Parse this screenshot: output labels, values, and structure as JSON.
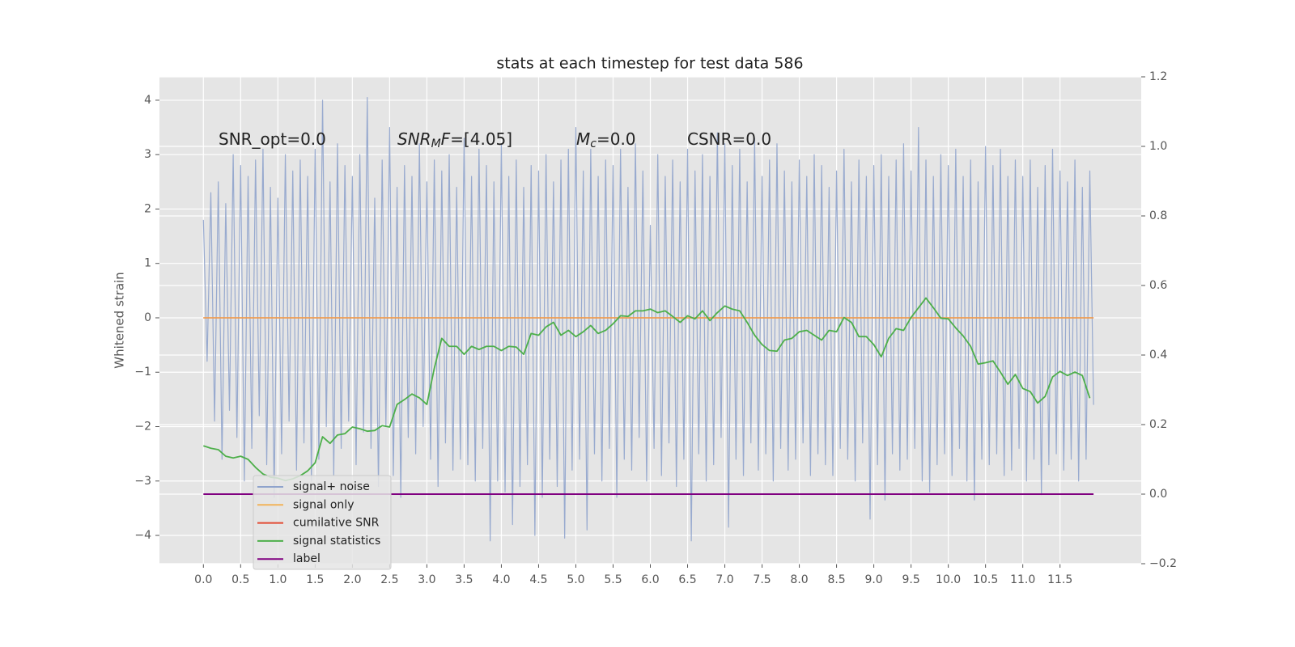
{
  "chart_data": {
    "type": "line",
    "title": "stats at each timestep for test data 586",
    "ylabel": "Whitened strain",
    "grid": true,
    "background": "#e5e5e5",
    "xlim": [
      -0.59,
      12.59
    ],
    "ylim": [
      -4.52,
      4.43
    ],
    "y2lim": [
      -0.2,
      1.2
    ],
    "xticks": [
      {
        "value": 0,
        "label": "0.0"
      },
      0.5,
      {
        "value": 1,
        "label": "1.0"
      },
      1.5,
      {
        "value": 2,
        "label": "2.0"
      },
      2.5,
      {
        "value": 3,
        "label": "3.0"
      },
      3.5,
      {
        "value": 4,
        "label": "4.0"
      },
      4.5,
      {
        "value": 5,
        "label": "5.0"
      },
      5.5,
      {
        "value": 6,
        "label": "6.0"
      },
      6.5,
      {
        "value": 7,
        "label": "7.0"
      },
      7.5,
      {
        "value": 8,
        "label": "8.0"
      },
      8.5,
      {
        "value": 9,
        "label": "9.0"
      },
      9.5,
      {
        "value": 10,
        "label": "10.0"
      },
      10.5,
      {
        "value": 11,
        "label": "11.0"
      },
      11.5
    ],
    "yticks": [
      {
        "value": -4,
        "label": "−4"
      },
      {
        "value": -3,
        "label": "−3"
      },
      {
        "value": -2,
        "label": "−2"
      },
      {
        "value": -1,
        "label": "−1"
      },
      0,
      1,
      2,
      3,
      4
    ],
    "y2ticks": [
      {
        "value": -0.2,
        "label": "−0.2"
      },
      {
        "value": 0,
        "label": "0.0"
      },
      0.2,
      0.4,
      0.6,
      0.8,
      {
        "value": 1,
        "label": "1.0"
      },
      1.2
    ],
    "annotations": [
      {
        "parts": [
          {
            "text": "SNR_opt=0.0"
          }
        ]
      },
      {
        "parts": [
          {
            "text": "SNR",
            "style": "italic"
          },
          {
            "text": "M",
            "style": "italic-sub"
          },
          {
            "text": "F",
            "style": "italic"
          },
          {
            "text": "=[4.05]"
          }
        ]
      },
      {
        "parts": [
          {
            "text": "M",
            "style": "italic"
          },
          {
            "text": "c",
            "style": "italic-sub"
          },
          {
            "text": "=0.0"
          }
        ]
      },
      {
        "parts": [
          {
            "text": "CSNR=0.0"
          }
        ]
      }
    ],
    "x": [
      0,
      0.05,
      0.1,
      0.15,
      0.2,
      0.25,
      0.3,
      0.35,
      0.4,
      0.45,
      0.5,
      0.55,
      0.6,
      0.65,
      0.7,
      0.75,
      0.8,
      0.85,
      0.9,
      0.95,
      1,
      1.05,
      1.1,
      1.15,
      1.2,
      1.25,
      1.3,
      1.35,
      1.4,
      1.45,
      1.5,
      1.55,
      1.6,
      1.65,
      1.7,
      1.75,
      1.8,
      1.85,
      1.9,
      1.95,
      2,
      2.05,
      2.1,
      2.15,
      2.2,
      2.25,
      2.3,
      2.35,
      2.4,
      2.45,
      2.5,
      2.55,
      2.6,
      2.65,
      2.7,
      2.75,
      2.8,
      2.85,
      2.9,
      2.95,
      3,
      3.05,
      3.1,
      3.15,
      3.2,
      3.25,
      3.3,
      3.35,
      3.4,
      3.45,
      3.5,
      3.55,
      3.6,
      3.65,
      3.7,
      3.75,
      3.8,
      3.85,
      3.9,
      3.95,
      4,
      4.05,
      4.1,
      4.15,
      4.2,
      4.25,
      4.3,
      4.35,
      4.4,
      4.45,
      4.5,
      4.55,
      4.6,
      4.65,
      4.7,
      4.75,
      4.8,
      4.85,
      4.9,
      4.95,
      5,
      5.05,
      5.1,
      5.15,
      5.2,
      5.25,
      5.3,
      5.35,
      5.4,
      5.45,
      5.5,
      5.55,
      5.6,
      5.65,
      5.7,
      5.75,
      5.8,
      5.85,
      5.9,
      5.95,
      6,
      6.05,
      6.1,
      6.15,
      6.2,
      6.25,
      6.3,
      6.35,
      6.4,
      6.45,
      6.5,
      6.55,
      6.6,
      6.65,
      6.7,
      6.75,
      6.8,
      6.85,
      6.9,
      6.95,
      7,
      7.05,
      7.1,
      7.15,
      7.2,
      7.25,
      7.3,
      7.35,
      7.4,
      7.45,
      7.5,
      7.55,
      7.6,
      7.65,
      7.7,
      7.75,
      7.8,
      7.85,
      7.9,
      7.95,
      8,
      8.05,
      8.1,
      8.15,
      8.2,
      8.25,
      8.3,
      8.35,
      8.4,
      8.45,
      8.5,
      8.55,
      8.6,
      8.65,
      8.7,
      8.75,
      8.8,
      8.85,
      8.9,
      8.95,
      9,
      9.05,
      9.1,
      9.15,
      9.2,
      9.25,
      9.3,
      9.35,
      9.4,
      9.45,
      9.5,
      9.55,
      9.6,
      9.65,
      9.7,
      9.75,
      9.8,
      9.85,
      9.9,
      9.95,
      10,
      10.05,
      10.1,
      10.15,
      10.2,
      10.25,
      10.3,
      10.35,
      10.4,
      10.45,
      10.5,
      10.55,
      10.6,
      10.65,
      10.7,
      10.75,
      10.8,
      10.85,
      10.9,
      10.95,
      11,
      11.05,
      11.1,
      11.15,
      11.2,
      11.25,
      11.3,
      11.35,
      11.4,
      11.45,
      11.5,
      11.55,
      11.6,
      11.65,
      11.7,
      11.75,
      11.8,
      11.85,
      11.9,
      11.95
    ],
    "series": [
      {
        "name": "signal+ noise",
        "color": "#8fa3cc",
        "values": [
          1.8,
          -0.8,
          2.3,
          -1.9,
          2.5,
          -2.6,
          2.1,
          -1.7,
          3.0,
          -2.2,
          2.8,
          -3.0,
          2.6,
          -2.4,
          2.9,
          -1.8,
          3.1,
          -2.7,
          2.4,
          -3.3,
          2.2,
          -2.5,
          3.0,
          -1.9,
          2.7,
          -2.8,
          2.9,
          -2.3,
          2.6,
          -3.0,
          3.1,
          -2.6,
          4.0,
          -2.0,
          2.5,
          -2.9,
          3.2,
          -2.4,
          2.8,
          -1.9,
          2.6,
          -2.7,
          3.0,
          -2.1,
          4.05,
          -2.4,
          2.2,
          -3.1,
          2.9,
          -2.0,
          3.5,
          -2.9,
          2.4,
          -3.3,
          2.8,
          -2.2,
          2.6,
          -2.5,
          3.2,
          -2.0,
          2.5,
          -2.6,
          2.9,
          -3.1,
          2.7,
          -2.3,
          3.0,
          -2.8,
          2.4,
          -2.6,
          3.3,
          -2.7,
          2.6,
          -3.0,
          3.1,
          -2.4,
          2.8,
          -4.1,
          2.5,
          -3.0,
          3.2,
          -3.2,
          2.6,
          -3.8,
          2.9,
          -3.1,
          2.4,
          -2.7,
          2.8,
          -4.0,
          2.7,
          -3.3,
          3.0,
          -2.6,
          2.5,
          -3.1,
          2.9,
          -4.05,
          3.1,
          -2.8,
          3.5,
          -2.6,
          2.7,
          -3.9,
          3.1,
          -2.5,
          2.6,
          -3.0,
          2.9,
          -2.4,
          2.8,
          -3.3,
          3.1,
          -2.6,
          2.4,
          -2.8,
          3.2,
          -2.2,
          2.7,
          -3.0,
          1.7,
          -2.4,
          3.0,
          -2.9,
          2.6,
          -2.3,
          2.9,
          -3.1,
          2.5,
          -2.6,
          3.1,
          -4.1,
          2.7,
          -2.5,
          3.0,
          -3.0,
          2.6,
          -2.7,
          3.4,
          -2.2,
          3.2,
          -3.85,
          2.8,
          -2.6,
          3.1,
          -2.9,
          2.5,
          -2.3,
          3.3,
          -2.8,
          2.6,
          -2.5,
          2.9,
          -3.0,
          3.2,
          -2.4,
          2.7,
          -2.8,
          2.5,
          -2.6,
          2.9,
          -2.3,
          2.6,
          -2.9,
          3.0,
          -2.5,
          2.8,
          -2.7,
          2.4,
          -2.9,
          2.7,
          -2.4,
          3.1,
          -2.6,
          2.5,
          -3.0,
          2.9,
          -2.3,
          2.6,
          -3.7,
          2.8,
          -2.7,
          3.0,
          -3.35,
          2.6,
          -2.5,
          2.9,
          -2.8,
          3.2,
          -2.6,
          2.7,
          -2.4,
          3.5,
          -3.0,
          2.9,
          -3.2,
          2.6,
          -2.7,
          3.0,
          -2.5,
          2.8,
          -2.9,
          3.1,
          -2.4,
          2.6,
          -3.0,
          2.9,
          -3.35,
          2.5,
          -2.6,
          3.15,
          -2.7,
          2.8,
          -2.5,
          3.1,
          -2.9,
          2.6,
          -2.8,
          2.9,
          -2.4,
          2.6,
          -3.0,
          2.9,
          -2.6,
          2.4,
          -3.25,
          2.8,
          -2.7,
          3.1,
          -2.5,
          2.7,
          -2.8,
          2.5,
          -2.6,
          2.9,
          -3.0,
          2.4,
          -2.6,
          2.7,
          -1.6
        ]
      },
      {
        "name": "signal only",
        "color": "#f2b35a",
        "x": [
          0,
          11.95
        ],
        "values": [
          0,
          0
        ]
      },
      {
        "name": "cumilative SNR",
        "color": "#e24a33",
        "x": [
          0,
          11.95
        ],
        "values": [
          0,
          0
        ]
      },
      {
        "name": "signal statistics",
        "color": "#4daf4a",
        "axis": "y2",
        "x": [
          0,
          0.1,
          0.2,
          0.3,
          0.4,
          0.5,
          0.6,
          0.7,
          0.8,
          0.9,
          1,
          1.1,
          1.2,
          1.3,
          1.4,
          1.5,
          1.6,
          1.7,
          1.8,
          1.9,
          2,
          2.1,
          2.2,
          2.3,
          2.4,
          2.5,
          2.6,
          2.7,
          2.8,
          2.9,
          3,
          3.1,
          3.2,
          3.3,
          3.4,
          3.5,
          3.6,
          3.7,
          3.8,
          3.9,
          4,
          4.1,
          4.2,
          4.3,
          4.4,
          4.5,
          4.6,
          4.7,
          4.8,
          4.9,
          5,
          5.1,
          5.2,
          5.3,
          5.4,
          5.5,
          5.6,
          5.7,
          5.8,
          5.9,
          6,
          6.1,
          6.2,
          6.3,
          6.4,
          6.5,
          6.6,
          6.7,
          6.8,
          6.9,
          7,
          7.1,
          7.2,
          7.3,
          7.4,
          7.5,
          7.6,
          7.7,
          7.8,
          7.9,
          8,
          8.1,
          8.2,
          8.3,
          8.4,
          8.5,
          8.6,
          8.7,
          8.8,
          8.9,
          9,
          9.1,
          9.2,
          9.3,
          9.4,
          9.5,
          9.6,
          9.7,
          9.8,
          9.9,
          10,
          10.1,
          10.2,
          10.3,
          10.4,
          10.5,
          10.6,
          10.7,
          10.8,
          10.9,
          11,
          11.1,
          11.2,
          11.3,
          11.4,
          11.5,
          11.6,
          11.7,
          11.8,
          11.9
        ],
        "values": [
          0.139,
          0.132,
          0.128,
          0.109,
          0.104,
          0.109,
          0.1,
          0.077,
          0.058,
          0.049,
          0.046,
          0.039,
          0.044,
          0.053,
          0.067,
          0.09,
          0.165,
          0.146,
          0.17,
          0.174,
          0.193,
          0.188,
          0.181,
          0.183,
          0.197,
          0.193,
          0.258,
          0.272,
          0.288,
          0.277,
          0.258,
          0.362,
          0.448,
          0.425,
          0.425,
          0.402,
          0.425,
          0.416,
          0.425,
          0.425,
          0.413,
          0.425,
          0.423,
          0.402,
          0.462,
          0.457,
          0.481,
          0.494,
          0.457,
          0.471,
          0.453,
          0.467,
          0.485,
          0.462,
          0.471,
          0.49,
          0.513,
          0.511,
          0.527,
          0.527,
          0.532,
          0.522,
          0.527,
          0.511,
          0.494,
          0.513,
          0.504,
          0.527,
          0.499,
          0.522,
          0.541,
          0.532,
          0.527,
          0.494,
          0.457,
          0.43,
          0.413,
          0.411,
          0.443,
          0.448,
          0.467,
          0.471,
          0.457,
          0.443,
          0.471,
          0.467,
          0.508,
          0.494,
          0.453,
          0.453,
          0.43,
          0.395,
          0.448,
          0.476,
          0.471,
          0.508,
          0.536,
          0.564,
          0.536,
          0.506,
          0.504,
          0.478,
          0.455,
          0.425,
          0.374,
          0.378,
          0.383,
          0.351,
          0.316,
          0.344,
          0.304,
          0.295,
          0.262,
          0.281,
          0.337,
          0.353,
          0.341,
          0.351,
          0.341,
          0.276
        ]
      },
      {
        "name": "label",
        "color": "#800080",
        "axis": "y2",
        "x": [
          0,
          11.95
        ],
        "values": [
          0,
          0
        ]
      }
    ]
  }
}
